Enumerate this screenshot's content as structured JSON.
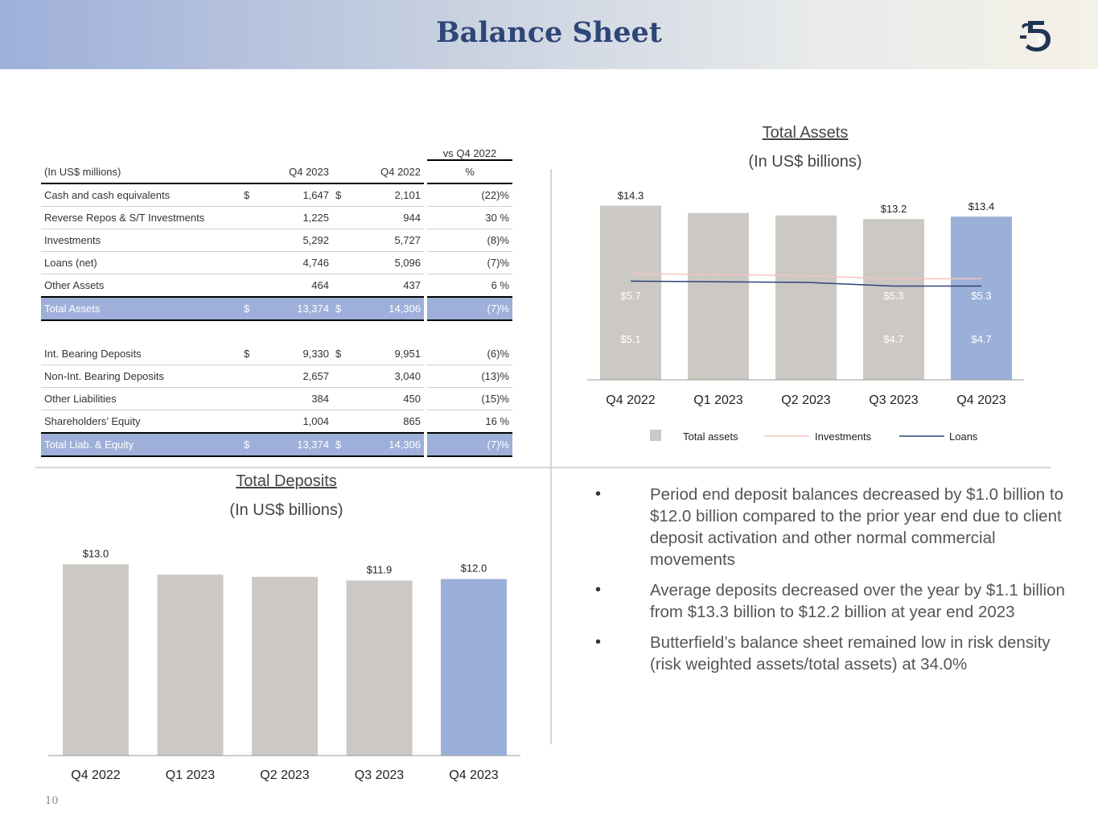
{
  "header": {
    "title": "Balance Sheet"
  },
  "page_number": "10",
  "table": {
    "vs_header": "vs Q4 2022",
    "units": "(In US$ millions)",
    "col_q4_2023": "Q4 2023",
    "col_q4_2022": "Q4 2022",
    "col_pct": "%",
    "assets": [
      {
        "label": "Cash and cash equivalents",
        "d1": "$",
        "v1": "1,647",
        "d2": "$",
        "v2": "2,101",
        "pct": "(22)%"
      },
      {
        "label": "Reverse Repos & S/T Investments",
        "d1": "",
        "v1": "1,225",
        "d2": "",
        "v2": "944",
        "pct": "30 %"
      },
      {
        "label": "Investments",
        "d1": "",
        "v1": "5,292",
        "d2": "",
        "v2": "5,727",
        "pct": "(8)%"
      },
      {
        "label": "Loans (net)",
        "d1": "",
        "v1": "4,746",
        "d2": "",
        "v2": "5,096",
        "pct": "(7)%"
      },
      {
        "label": "Other Assets",
        "d1": "",
        "v1": "464",
        "d2": "",
        "v2": "437",
        "pct": "6 %"
      }
    ],
    "total_assets": {
      "label": "Total Assets",
      "d1": "$",
      "v1": "13,374",
      "d2": "$",
      "v2": "14,306",
      "pct": "(7)%"
    },
    "liabilities": [
      {
        "label": "Int. Bearing Deposits",
        "d1": "$",
        "v1": "9,330",
        "d2": "$",
        "v2": "9,951",
        "pct": "(6)%"
      },
      {
        "label": "Non-Int. Bearing Deposits",
        "d1": "",
        "v1": "2,657",
        "d2": "",
        "v2": "3,040",
        "pct": "(13)%"
      },
      {
        "label": "Other Liabilities",
        "d1": "",
        "v1": "384",
        "d2": "",
        "v2": "450",
        "pct": "(15)%"
      },
      {
        "label": "Shareholders’ Equity",
        "d1": "",
        "v1": "1,004",
        "d2": "",
        "v2": "865",
        "pct": "16 %"
      }
    ],
    "total_liab": {
      "label": "Total Liab. & Equity",
      "d1": "$",
      "v1": "13,374",
      "d2": "$",
      "v2": "14,306",
      "pct": "(7)%"
    }
  },
  "chart_data": [
    {
      "type": "bar",
      "title": "Total Assets",
      "subtitle": "(In US$ billions)",
      "categories": [
        "Q4 2022",
        "Q1 2023",
        "Q2 2023",
        "Q3 2023",
        "Q4 2023"
      ],
      "series": [
        {
          "name": "Total assets",
          "type": "bar",
          "values": [
            14.3,
            13.7,
            13.5,
            13.2,
            13.4
          ],
          "labels": [
            "$14.3",
            "",
            "",
            "$13.2",
            "$13.4"
          ]
        },
        {
          "name": "Investments",
          "type": "line",
          "values": [
            5.7,
            5.65,
            5.55,
            5.3,
            5.3
          ],
          "labels": [
            "$5.7",
            "",
            "",
            "$5.3",
            "$5.3"
          ]
        },
        {
          "name": "Loans",
          "type": "line",
          "values": [
            5.1,
            5.05,
            5.0,
            4.7,
            4.7
          ],
          "labels": [
            "$5.1",
            "",
            "",
            "$4.7",
            "$4.7"
          ]
        }
      ],
      "ylim": [
        0,
        15
      ],
      "highlight_index": 4,
      "legend": "bottom",
      "colors": {
        "bar": "#ccc9c4",
        "highlight": "#9bb0d8",
        "investments": "#f4c4c0",
        "loans": "#2e4577",
        "inside_label": "#ffffff"
      }
    },
    {
      "type": "bar",
      "title": "Total Deposits",
      "subtitle": "(In US$ billions)",
      "categories": [
        "Q4 2022",
        "Q1 2023",
        "Q2 2023",
        "Q3 2023",
        "Q4 2023"
      ],
      "series": [
        {
          "name": "Total deposits",
          "values": [
            13.0,
            12.3,
            12.15,
            11.9,
            12.0
          ],
          "labels": [
            "$13.0",
            "",
            "",
            "$11.9",
            "$12.0"
          ]
        }
      ],
      "ylim": [
        0,
        13.4
      ],
      "highlight_index": 4,
      "colors": {
        "bar": "#ccc9c4",
        "highlight": "#9bb0d8"
      }
    }
  ],
  "bullets": [
    "Period end deposit balances decreased by $1.0 billion to $12.0 billion compared to the prior year end due to client deposit activation and other normal commercial movements",
    "Average deposits decreased over the year by $1.1 billion from $13.3 billion to $12.2 billion at year end 2023",
    "Butterfield’s balance sheet remained low in risk density (risk weighted assets/total assets) at 34.0%"
  ],
  "bullet_glyph": "•"
}
